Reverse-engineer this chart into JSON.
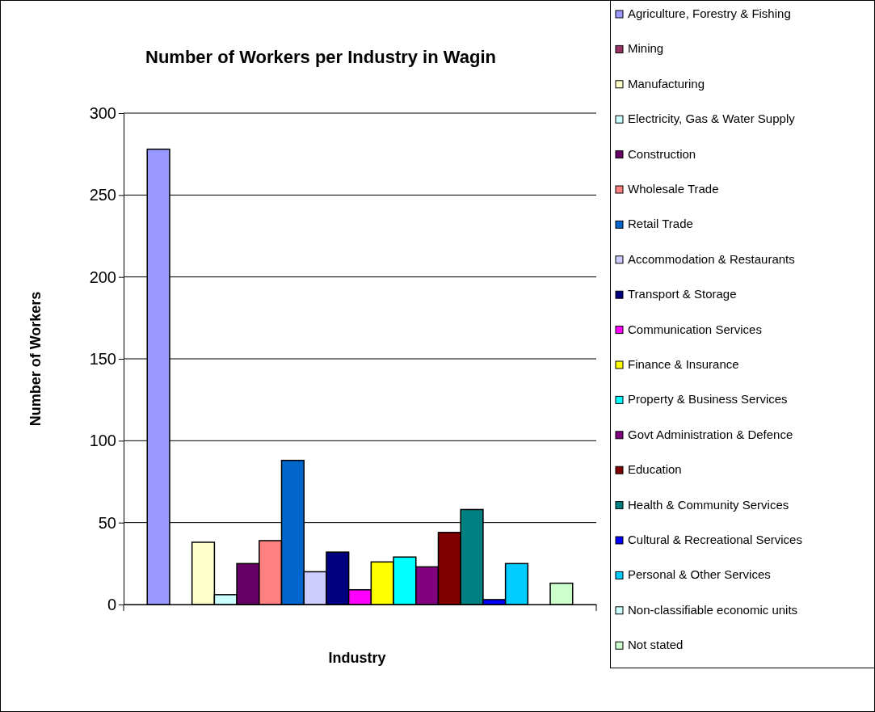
{
  "chart_data": {
    "type": "bar",
    "title": "Number of Workers per Industry in Wagin",
    "xlabel": "Industry",
    "ylabel": "Number of Workers",
    "categories": [
      null
    ],
    "series": [
      {
        "name": "Agriculture, Forestry & Fishing",
        "color": "#9999ff",
        "values": [
          278
        ]
      },
      {
        "name": "Mining",
        "color": "#993366",
        "values": [
          0
        ]
      },
      {
        "name": "Manufacturing",
        "color": "#ffffcc",
        "values": [
          38
        ]
      },
      {
        "name": "Electricity, Gas & Water Supply",
        "color": "#ccffff",
        "values": [
          6
        ]
      },
      {
        "name": "Construction",
        "color": "#660066",
        "values": [
          25
        ]
      },
      {
        "name": "Wholesale Trade",
        "color": "#ff8080",
        "values": [
          39
        ]
      },
      {
        "name": "Retail Trade",
        "color": "#0066cc",
        "values": [
          88
        ]
      },
      {
        "name": "Accommodation & Restaurants",
        "color": "#ccccff",
        "values": [
          20
        ]
      },
      {
        "name": "Transport & Storage",
        "color": "#000080",
        "values": [
          32
        ]
      },
      {
        "name": "Communication Services",
        "color": "#ff00ff",
        "values": [
          9
        ]
      },
      {
        "name": "Finance & Insurance",
        "color": "#ffff00",
        "values": [
          26
        ]
      },
      {
        "name": "Property & Business Services",
        "color": "#00ffff",
        "values": [
          29
        ]
      },
      {
        "name": "Govt Administration & Defence",
        "color": "#800080",
        "values": [
          23
        ]
      },
      {
        "name": "Education",
        "color": "#800000",
        "values": [
          44
        ]
      },
      {
        "name": "Health & Community Services",
        "color": "#008080",
        "values": [
          58
        ]
      },
      {
        "name": "Cultural & Recreational Services",
        "color": "#0000ff",
        "values": [
          3
        ]
      },
      {
        "name": "Personal & Other Services",
        "color": "#00ccff",
        "values": [
          25
        ]
      },
      {
        "name": "Non-classifiable economic units",
        "color": "#ccffff",
        "values": [
          0
        ]
      },
      {
        "name": "Not stated",
        "color": "#ccffcc",
        "values": [
          13
        ]
      }
    ],
    "ylim": [
      0,
      300
    ],
    "yticks": [
      0,
      50,
      100,
      150,
      200,
      250,
      300
    ],
    "grid": "y",
    "legend": "right"
  }
}
